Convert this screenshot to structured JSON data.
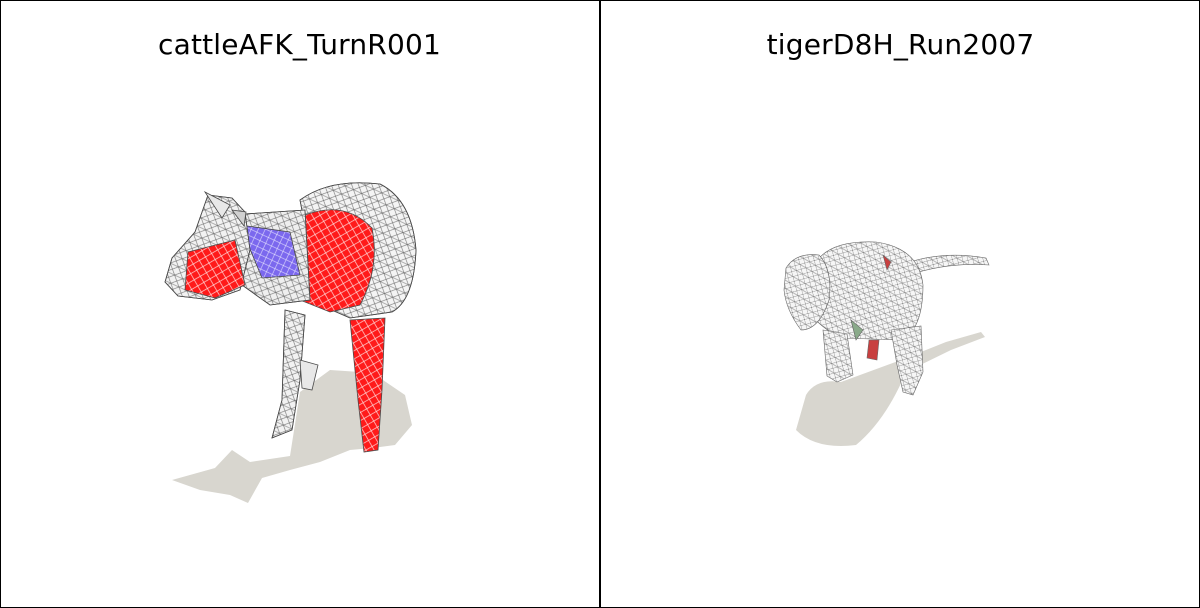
{
  "panels": [
    {
      "title": "cattleAFK_TurnR001",
      "subject": "cattle-mesh"
    },
    {
      "title": "tigerD8H_Run2007",
      "subject": "tiger-mesh"
    }
  ],
  "colors": {
    "background": "#ffffff",
    "border": "#000000",
    "shadow": "#d8d6cf",
    "mesh_wire": "#555555",
    "highlight_red": "#ff0000",
    "highlight_blue": "#6a5acd"
  }
}
